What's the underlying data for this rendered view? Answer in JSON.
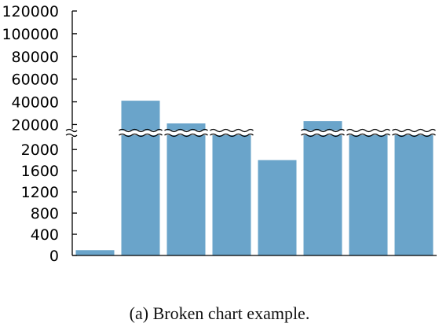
{
  "caption": "(a) Broken chart example.",
  "chart_data": {
    "type": "bar",
    "broken_axis": true,
    "bar_color": "#6aa4ca",
    "categories": [
      "",
      "",
      "",
      "",
      "",
      "",
      "",
      ""
    ],
    "values": [
      100,
      41000,
      21000,
      null,
      1800,
      23000,
      null,
      null
    ],
    "values_note": "null = bar rises past the axis break; exact value not shown",
    "lower_segment": {
      "ylim": [
        0,
        2300
      ],
      "ticks": [
        0,
        400,
        800,
        1200,
        1600,
        2000
      ]
    },
    "upper_segment": {
      "ylim": [
        12000,
        120000
      ],
      "ticks": [
        20000,
        40000,
        60000,
        80000,
        100000,
        120000
      ]
    },
    "title": "",
    "xlabel": "",
    "ylabel": "",
    "grid": false,
    "legend": false
  }
}
